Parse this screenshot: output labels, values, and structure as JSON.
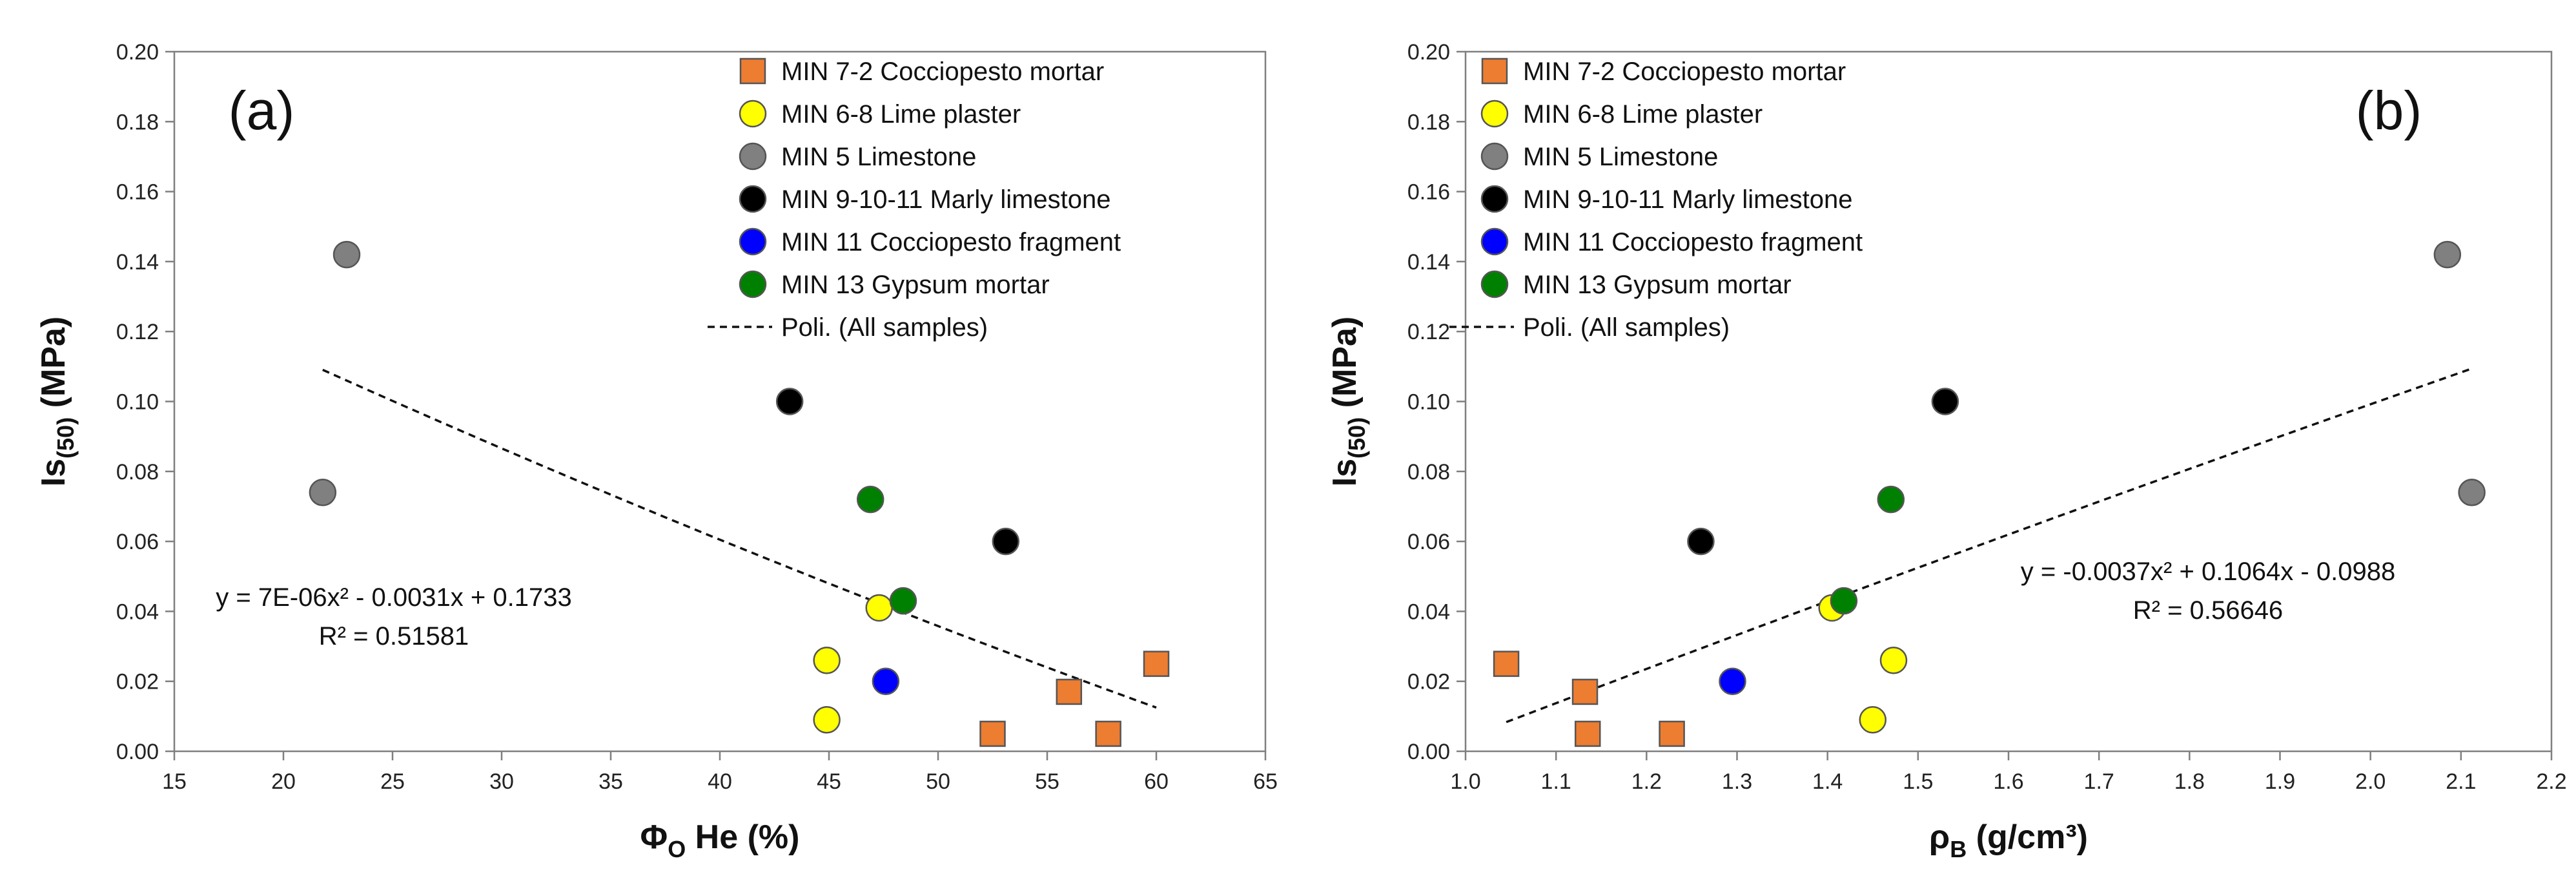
{
  "chart_data": [
    {
      "type": "scatter",
      "panel_label": "(a)",
      "xlabel": "ΦO He (%)",
      "xlabel_main": "Φ",
      "xlabel_sub": "O",
      "xlabel_rest": " He (%)",
      "ylabel": "Is(50) (MPa)",
      "ylabel_main": "Is",
      "ylabel_sub": "(50)",
      "ylabel_rest": " (MPa)",
      "xlim": [
        15,
        65
      ],
      "ylim": [
        0,
        0.2
      ],
      "xticks": [
        "15",
        "20",
        "25",
        "30",
        "35",
        "40",
        "45",
        "50",
        "55",
        "60",
        "65"
      ],
      "yticks": [
        "0.00",
        "0.02",
        "0.04",
        "0.06",
        "0.08",
        "0.10",
        "0.12",
        "0.14",
        "0.16",
        "0.18",
        "0.20"
      ],
      "legend_position": "top-right",
      "series": [
        {
          "name": "MIN 7-2 Cocciopesto mortar",
          "marker": "square",
          "color": "#ed7d31",
          "points": [
            [
              52.5,
              0.005
            ],
            [
              56.0,
              0.017
            ],
            [
              57.8,
              0.005
            ],
            [
              60.0,
              0.025
            ]
          ]
        },
        {
          "name": "MIN 6-8 Lime plaster",
          "marker": "circle",
          "color": "#ffff00",
          "points": [
            [
              44.9,
              0.026
            ],
            [
              44.9,
              0.009
            ],
            [
              47.3,
              0.041
            ]
          ]
        },
        {
          "name": "MIN 5 Limestone",
          "marker": "circle",
          "color": "#808080",
          "points": [
            [
              22.9,
              0.142
            ],
            [
              21.8,
              0.074
            ]
          ]
        },
        {
          "name": "MIN 9-10-11 Marly limestone",
          "marker": "circle",
          "color": "#000000",
          "points": [
            [
              43.2,
              0.1
            ],
            [
              53.1,
              0.06
            ]
          ]
        },
        {
          "name": "MIN 11 Cocciopesto fragment",
          "marker": "circle",
          "color": "#0000ff",
          "points": [
            [
              47.6,
              0.02
            ]
          ]
        },
        {
          "name": "MIN 13 Gypsum mortar",
          "marker": "circle",
          "color": "#008000",
          "points": [
            [
              46.9,
              0.072
            ],
            [
              48.4,
              0.043
            ]
          ]
        }
      ],
      "trendline": {
        "name": "Poli. (All samples)",
        "coefficients": {
          "a": 7e-06,
          "b": -0.0031,
          "c": 0.1733
        },
        "x_range": [
          21.8,
          60.0
        ],
        "equation": "y = 7E-06x² - 0.0031x + 0.1733",
        "r2": "R² = 0.51581"
      }
    },
    {
      "type": "scatter",
      "panel_label": "(b)",
      "xlabel": "ρB (g/cm³)",
      "xlabel_main": "ρ",
      "xlabel_sub": "B",
      "xlabel_rest": " (g/cm³)",
      "ylabel": "Is(50) (MPa)",
      "ylabel_main": "Is",
      "ylabel_sub": "(50)",
      "ylabel_rest": " (MPa)",
      "xlim": [
        1.0,
        2.2
      ],
      "ylim": [
        0,
        0.2
      ],
      "xticks": [
        "1.0",
        "1.1",
        "1.2",
        "1.3",
        "1.4",
        "1.5",
        "1.6",
        "1.7",
        "1.8",
        "1.9",
        "2.0",
        "2.1",
        "2.2"
      ],
      "yticks": [
        "0.00",
        "0.02",
        "0.04",
        "0.06",
        "0.08",
        "0.10",
        "0.12",
        "0.14",
        "0.16",
        "0.18",
        "0.20"
      ],
      "legend_position": "top-left",
      "series": [
        {
          "name": "MIN 7-2 Cocciopesto mortar",
          "marker": "square",
          "color": "#ed7d31",
          "points": [
            [
              1.045,
              0.025
            ],
            [
              1.132,
              0.017
            ],
            [
              1.135,
              0.005
            ],
            [
              1.228,
              0.005
            ]
          ]
        },
        {
          "name": "MIN 6-8 Lime plaster",
          "marker": "circle",
          "color": "#ffff00",
          "points": [
            [
              1.405,
              0.041
            ],
            [
              1.473,
              0.026
            ],
            [
              1.45,
              0.009
            ]
          ]
        },
        {
          "name": "MIN 5 Limestone",
          "marker": "circle",
          "color": "#808080",
          "points": [
            [
              2.085,
              0.142
            ],
            [
              2.112,
              0.074
            ]
          ]
        },
        {
          "name": "MIN 9-10-11 Marly limestone",
          "marker": "circle",
          "color": "#000000",
          "points": [
            [
              1.26,
              0.06
            ],
            [
              1.53,
              0.1
            ]
          ]
        },
        {
          "name": "MIN 11 Cocciopesto fragment",
          "marker": "circle",
          "color": "#0000ff",
          "points": [
            [
              1.295,
              0.02
            ]
          ]
        },
        {
          "name": "MIN 13 Gypsum mortar",
          "marker": "circle",
          "color": "#008000",
          "points": [
            [
              1.47,
              0.072
            ],
            [
              1.418,
              0.043
            ]
          ]
        }
      ],
      "trendline": {
        "name": "Poli. (All samples)",
        "coefficients": {
          "a": -0.0037,
          "b": 0.1064,
          "c": -0.0988
        },
        "x_range": [
          1.045,
          2.112
        ],
        "equation": "y = -0.0037x² + 0.1064x - 0.0988",
        "r2": "R² = 0.56646"
      }
    }
  ]
}
